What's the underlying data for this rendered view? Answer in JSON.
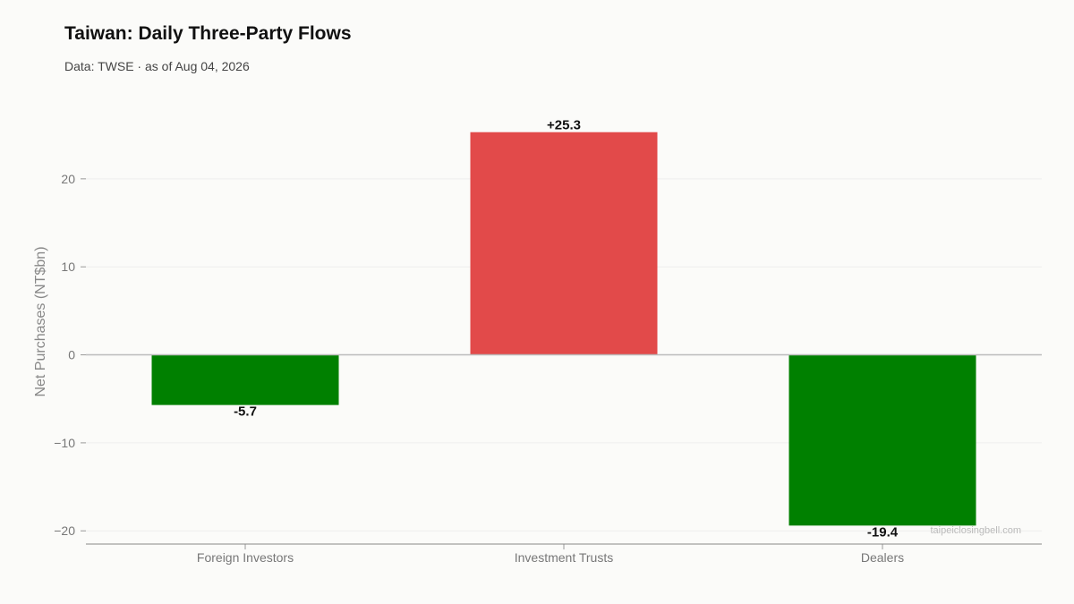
{
  "header": {
    "title": "Taiwan: Daily Three-Party Flows",
    "subtitle": "Data: TWSE · as of Aug 04, 2026"
  },
  "watermark": "taipeiclosingbell.com",
  "colors": {
    "positive": "#e24a4a",
    "negative": "#008000",
    "background": "#fbfbf9",
    "axis_text": "#777777",
    "zero_line": "#bbbbbb",
    "grid": "#eeeeee"
  },
  "chart_data": {
    "type": "bar",
    "title": "Taiwan: Daily Three-Party Flows",
    "subtitle": "Data: TWSE · as of Aug 04, 2026",
    "xlabel": "",
    "ylabel": "Net Purchases (NT$bn)",
    "categories": [
      "Foreign Investors",
      "Investment Trusts",
      "Dealers"
    ],
    "values": [
      -5.7,
      25.3,
      -19.4
    ],
    "data_labels": [
      "-5.7",
      "+25.3",
      "-19.4"
    ],
    "yticks": [
      20,
      10,
      0,
      -10,
      -20
    ],
    "ytick_labels": [
      "20",
      "10",
      "0",
      "−10",
      "−20"
    ],
    "ylim": [
      -21.5,
      27
    ],
    "grid": true,
    "legend": "none"
  }
}
